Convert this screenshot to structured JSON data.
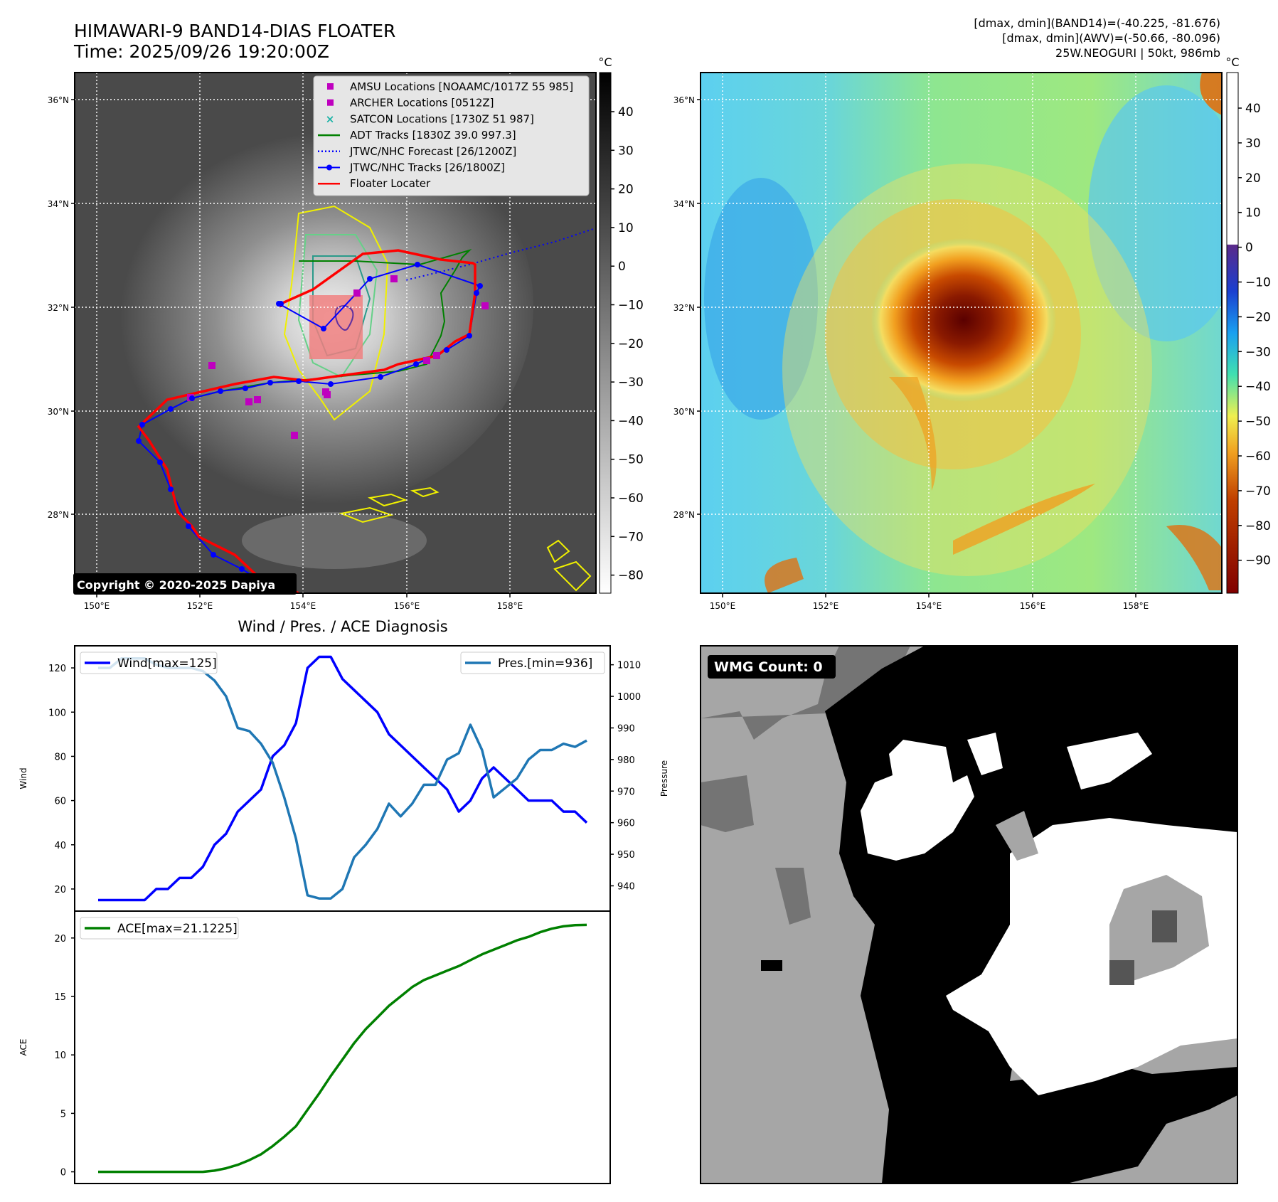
{
  "header": {
    "title": "HIMAWARI-9 BAND14-DIAS FLOATER",
    "time": "Time: 2025/09/26 19:20:00Z",
    "stats_band14": "[dmax, dmin](BAND14)=(-40.225, -81.676)",
    "stats_awv": "[dmax, dmin](AWV)=(-50.66, -80.096)",
    "storm": "25W.NEOGURI | 50kt, 986mb"
  },
  "map": {
    "lat_labels": [
      "36°N",
      "34°N",
      "32°N",
      "30°N",
      "28°N"
    ],
    "lon_labels": [
      "150°E",
      "152°E",
      "154°E",
      "156°E",
      "158°E"
    ],
    "copyright": "Copyright © 2020-2025 Dapiya"
  },
  "legend_map": [
    {
      "label": "AMSU Locations [NOAAMC/1017Z 55 985]",
      "color": "#bf00bf",
      "kind": "square"
    },
    {
      "label": "ARCHER Locations [0512Z]",
      "color": "#bf00bf",
      "kind": "square"
    },
    {
      "label": "SATCON Locations [1730Z 51 987]",
      "color": "#1ab3a6",
      "kind": "x"
    },
    {
      "label": "ADT Tracks [1830Z 39.0 997.3]",
      "color": "#008000",
      "kind": "line"
    },
    {
      "label": "JTWC/NHC Forecast [26/1200Z]",
      "color": "#0000ff",
      "kind": "dotted"
    },
    {
      "label": "JTWC/NHC Tracks [26/1800Z]",
      "color": "#0000ff",
      "kind": "linedot"
    },
    {
      "label": "Floater Locater",
      "color": "#ff0000",
      "kind": "line"
    }
  ],
  "colorbars": {
    "unit": "°C",
    "ir_ticks": [
      "40",
      "30",
      "20",
      "10",
      "0",
      "−10",
      "−20",
      "−30",
      "−40",
      "−50",
      "−60",
      "−70",
      "−80"
    ],
    "awv_ticks": [
      "40",
      "30",
      "20",
      "10",
      "0",
      "−10",
      "−20",
      "−30",
      "−40",
      "−50",
      "−60",
      "−70",
      "−80",
      "−90"
    ]
  },
  "wmg": {
    "label": "WMG Count: 0"
  },
  "chart_data": [
    {
      "type": "line",
      "title": "Wind / Pres. / ACE Diagnosis",
      "ylabel": "Wind",
      "ylabel_right": "Pressure",
      "ylim": [
        10,
        130
      ],
      "ylim_right": [
        932,
        1016
      ],
      "yticks": [
        20,
        40,
        60,
        80,
        100,
        120
      ],
      "yticks_right": [
        940,
        950,
        960,
        970,
        980,
        990,
        1000,
        1010
      ],
      "series": [
        {
          "name": "Wind[max=125]",
          "color": "#0000ff",
          "values": [
            15,
            15,
            15,
            15,
            15,
            20,
            20,
            25,
            25,
            30,
            40,
            45,
            55,
            60,
            65,
            80,
            85,
            95,
            120,
            125,
            125,
            115,
            110,
            105,
            100,
            90,
            85,
            80,
            75,
            70,
            65,
            55,
            60,
            70,
            75,
            70,
            65,
            60,
            60,
            60,
            55,
            55,
            50
          ]
        },
        {
          "name": "Pres.[min=936]",
          "color": "#1f77b4",
          "axis": "right",
          "values": [
            1009,
            1009,
            1012,
            1012,
            1012,
            1010,
            1009,
            1009,
            1009,
            1008,
            1005,
            1000,
            990,
            989,
            985,
            979,
            968,
            955,
            937,
            936,
            936,
            939,
            949,
            953,
            958,
            966,
            962,
            966,
            972,
            972,
            980,
            982,
            991,
            983,
            968,
            971,
            974,
            980,
            983,
            983,
            985,
            984,
            986
          ]
        }
      ]
    },
    {
      "type": "line",
      "ylabel": "ACE",
      "ylim": [
        -1,
        22.3
      ],
      "yticks": [
        0,
        5,
        10,
        15,
        20
      ],
      "series": [
        {
          "name": "ACE[max=21.1225]",
          "color": "#008000",
          "values": [
            0,
            0,
            0,
            0,
            0,
            0,
            0,
            0,
            0,
            0,
            0.1,
            0.3,
            0.6,
            1.0,
            1.5,
            2.2,
            3.0,
            3.9,
            5.3,
            6.7,
            8.2,
            9.6,
            11.0,
            12.2,
            13.2,
            14.2,
            15.0,
            15.8,
            16.4,
            16.8,
            17.2,
            17.6,
            18.1,
            18.6,
            19.0,
            19.4,
            19.8,
            20.1,
            20.5,
            20.8,
            21.0,
            21.1,
            21.1225
          ]
        }
      ]
    }
  ]
}
